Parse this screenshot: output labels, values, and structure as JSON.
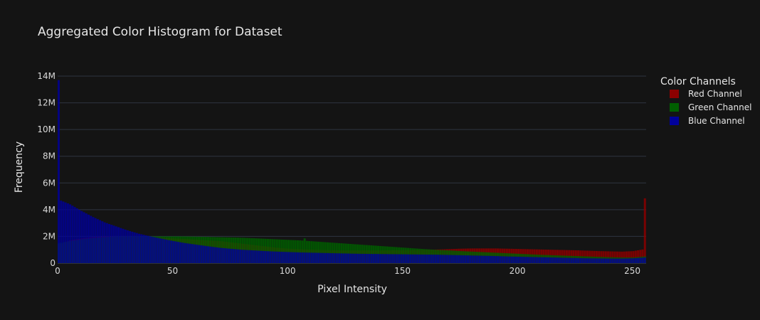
{
  "chart_data": {
    "type": "bar",
    "title": "Aggregated Color Histogram for Dataset",
    "xlabel": "Pixel Intensity",
    "ylabel": "Frequency",
    "xlim": [
      0,
      255
    ],
    "ylim": [
      0,
      14000000
    ],
    "x_ticks": [
      0,
      50,
      100,
      150,
      200,
      250
    ],
    "x_tick_labels": [
      "0",
      "50",
      "100",
      "150",
      "200",
      "250"
    ],
    "y_ticks": [
      0,
      2000000,
      4000000,
      6000000,
      8000000,
      10000000,
      12000000,
      14000000
    ],
    "y_tick_labels": [
      "0",
      "2M",
      "4M",
      "6M",
      "8M",
      "10M",
      "12M",
      "14M"
    ],
    "grid": true,
    "legend": {
      "title": "Color Channels",
      "position": "top-right"
    },
    "series": [
      {
        "name": "Red Channel",
        "color": "#8b0000",
        "opacity": 0.85,
        "x_start": 0,
        "x_step": 5,
        "values": [
          1400000,
          1700000,
          1850000,
          1950000,
          2000000,
          2000000,
          2000000,
          1980000,
          1950000,
          1900000,
          1850000,
          1800000,
          1750000,
          1700000,
          1650000,
          1550000,
          1450000,
          1350000,
          1250000,
          1150000,
          1080000,
          1030000,
          1000000,
          980000,
          960000,
          950000,
          950000,
          950000,
          950000,
          960000,
          970000,
          980000,
          1000000,
          1020000,
          1050000,
          1080000,
          1100000,
          1100000,
          1100000,
          1080000,
          1060000,
          1040000,
          1020000,
          1000000,
          980000,
          960000,
          930000,
          900000,
          880000,
          860000,
          900000,
          1050000
        ],
        "spikes": [
          {
            "x": 255,
            "y": 4850000
          }
        ]
      },
      {
        "name": "Green Channel",
        "color": "#005f00",
        "opacity": 0.85,
        "x_start": 0,
        "x_step": 5,
        "values": [
          1500000,
          1650000,
          1780000,
          1880000,
          1950000,
          2000000,
          2000000,
          2000000,
          2000000,
          2000000,
          2000000,
          2000000,
          1980000,
          1960000,
          1940000,
          1920000,
          1900000,
          1860000,
          1820000,
          1780000,
          1740000,
          1700000,
          1640000,
          1580000,
          1520000,
          1460000,
          1400000,
          1340000,
          1280000,
          1220000,
          1160000,
          1100000,
          1040000,
          990000,
          950000,
          900000,
          860000,
          820000,
          780000,
          740000,
          700000,
          660000,
          620000,
          590000,
          560000,
          530000,
          500000,
          470000,
          440000,
          420000,
          420000,
          500000
        ],
        "spikes": [
          {
            "x": 107,
            "y": 1850000
          }
        ]
      },
      {
        "name": "Blue Channel",
        "color": "#00009a",
        "opacity": 0.82,
        "x_start": 0,
        "x_step": 5,
        "values": [
          4750000,
          4400000,
          3900000,
          3450000,
          3050000,
          2750000,
          2450000,
          2200000,
          2000000,
          1820000,
          1650000,
          1500000,
          1380000,
          1260000,
          1150000,
          1070000,
          1000000,
          950000,
          900000,
          860000,
          830000,
          800000,
          780000,
          760000,
          740000,
          720000,
          700000,
          690000,
          680000,
          670000,
          660000,
          650000,
          640000,
          630000,
          610000,
          590000,
          570000,
          550000,
          530000,
          500000,
          480000,
          460000,
          440000,
          420000,
          400000,
          380000,
          360000,
          350000,
          340000,
          340000,
          360000,
          420000
        ],
        "spikes": [
          {
            "x": 0,
            "y": 13700000
          }
        ]
      }
    ]
  }
}
